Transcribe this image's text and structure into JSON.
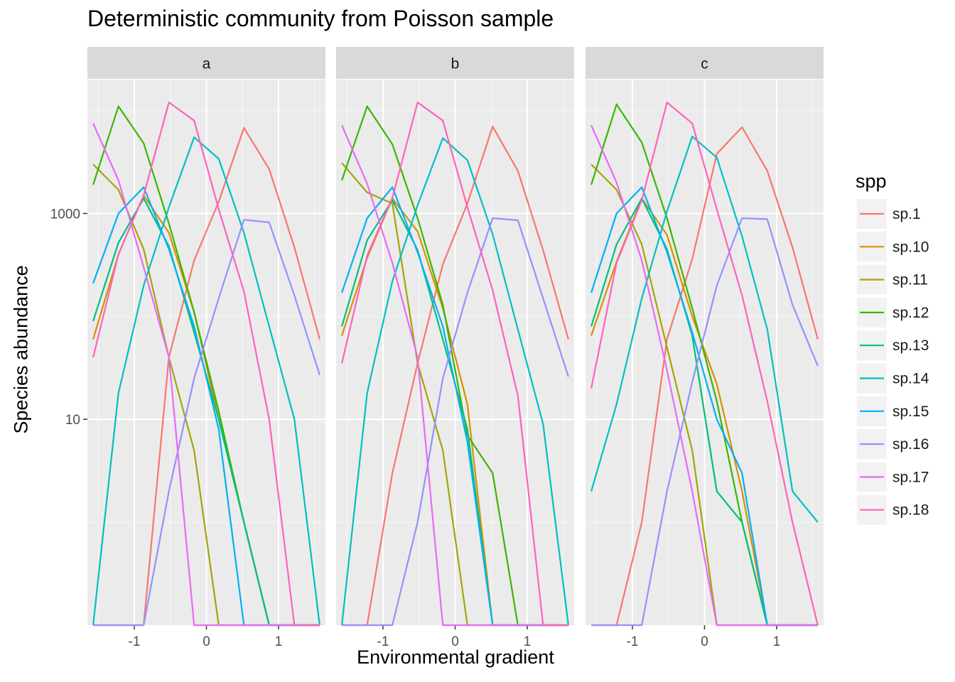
{
  "chart_data": {
    "type": "line",
    "title": "Deterministic community from Poisson sample",
    "xlabel": "Environmental gradient",
    "ylabel": "Species abundance",
    "legend_title": "spp",
    "legend_position": "right",
    "y_scale": "log10",
    "ylim": [
      0.1,
      20000
    ],
    "xlim": [
      -1.65,
      1.65
    ],
    "x_ticks": [
      -1,
      0,
      1
    ],
    "x_tick_labels": [
      "-1",
      "0",
      "1"
    ],
    "y_ticks": [
      10,
      1000
    ],
    "y_tick_labels": [
      "10",
      "1000"
    ],
    "y_minor_ticks": [
      1,
      100,
      10000
    ],
    "grid": true,
    "x": [
      -1.57,
      -1.22,
      -0.87,
      -0.52,
      -0.17,
      0.17,
      0.52,
      0.87,
      1.22,
      1.57
    ],
    "colors": {
      "sp.1": "#F8766D",
      "sp.10": "#D89000",
      "sp.11": "#A3A500",
      "sp.12": "#39B600",
      "sp.13": "#00BF7D",
      "sp.14": "#00BFC4",
      "sp.15": "#00B0F6",
      "sp.16": "#9590FF",
      "sp.17": "#E76BF3",
      "sp.18": "#FF62BC"
    },
    "species": [
      "sp.1",
      "sp.10",
      "sp.11",
      "sp.12",
      "sp.13",
      "sp.14",
      "sp.15",
      "sp.16",
      "sp.17",
      "sp.18"
    ],
    "panels": [
      {
        "label": "a",
        "series": {
          "sp.1": [
            0.1,
            0.1,
            0.1,
            40,
            350,
            1300,
            6800,
            2700,
            470,
            60
          ],
          "sp.10": [
            60,
            400,
            1500,
            650,
            110,
            10,
            1,
            0.1,
            0.1,
            0.1
          ],
          "sp.11": [
            3000,
            1700,
            450,
            40,
            5,
            0.1,
            0.1,
            0.1,
            0.1,
            0.1
          ],
          "sp.12": [
            1900,
            11000,
            4800,
            800,
            110,
            12,
            1,
            0.1,
            0.1,
            0.1
          ],
          "sp.13": [
            90,
            520,
            1400,
            480,
            70,
            10,
            1,
            0.1,
            0.1,
            0.1
          ],
          "sp.14": [
            0.1,
            18,
            200,
            1150,
            5500,
            3400,
            650,
            80,
            10,
            0.1
          ],
          "sp.15": [
            210,
            1000,
            1800,
            450,
            80,
            8,
            0.1,
            0.1,
            0.1,
            0.1
          ],
          "sp.16": [
            0.1,
            0.1,
            0.1,
            2,
            25,
            150,
            870,
            820,
            160,
            27
          ],
          "sp.17": [
            7500,
            2100,
            300,
            40,
            0.1,
            0.1,
            0.1,
            0.1,
            0.1,
            0.1
          ],
          "sp.18": [
            40,
            400,
            1500,
            12000,
            8000,
            1100,
            175,
            10,
            0.1,
            0.1
          ]
        }
      },
      {
        "label": "b",
        "series": {
          "sp.1": [
            0.1,
            0.1,
            3,
            35,
            320,
            1250,
            7000,
            2600,
            440,
            60
          ],
          "sp.10": [
            65,
            370,
            1400,
            670,
            120,
            14,
            0.1,
            0.1,
            0.1,
            0.1
          ],
          "sp.11": [
            3100,
            1600,
            1250,
            35,
            5,
            0.1,
            0.1,
            0.1,
            0.1,
            0.1
          ],
          "sp.12": [
            2100,
            11000,
            4700,
            900,
            130,
            7,
            3,
            0.1,
            0.1,
            0.1
          ],
          "sp.13": [
            80,
            550,
            1350,
            440,
            60,
            8,
            0.1,
            0.1,
            0.1,
            0.1
          ],
          "sp.14": [
            0.1,
            18,
            220,
            1200,
            5400,
            3300,
            630,
            75,
            9,
            0.1
          ],
          "sp.15": [
            170,
            900,
            1800,
            420,
            80,
            6,
            0.1,
            0.1,
            0.1,
            0.1
          ],
          "sp.16": [
            0.1,
            0.1,
            0.1,
            1,
            25,
            170,
            900,
            860,
            150,
            26
          ],
          "sp.17": [
            7200,
            1950,
            330,
            40,
            0.1,
            0.1,
            0.1,
            0.1,
            0.1,
            0.1
          ],
          "sp.18": [
            35,
            390,
            1420,
            12000,
            8000,
            1150,
            180,
            17,
            0.1,
            0.1
          ]
        }
      },
      {
        "label": "c",
        "series": {
          "sp.1": [
            0.1,
            0.1,
            1,
            60,
            360,
            3800,
            6900,
            2600,
            470,
            60
          ],
          "sp.10": [
            65,
            340,
            1400,
            620,
            100,
            22,
            2,
            0.1,
            0.1,
            0.1
          ],
          "sp.11": [
            3000,
            1700,
            500,
            50,
            5,
            0.1,
            0.1,
            0.1,
            0.1,
            0.1
          ],
          "sp.12": [
            1900,
            11500,
            4900,
            900,
            120,
            15,
            1,
            0.1,
            0.1,
            0.1
          ],
          "sp.13": [
            80,
            500,
            1400,
            450,
            65,
            2,
            1,
            0.1,
            0.1,
            0.1
          ],
          "sp.14": [
            2,
            14,
            150,
            1050,
            5600,
            3500,
            600,
            75,
            2,
            1
          ],
          "sp.15": [
            170,
            1000,
            1800,
            420,
            70,
            10,
            3,
            0.1,
            0.1,
            0.1
          ],
          "sp.16": [
            0.1,
            0.1,
            0.1,
            2,
            23,
            200,
            900,
            880,
            130,
            33
          ],
          "sp.17": [
            7200,
            2000,
            350,
            30,
            2,
            0.1,
            0.1,
            0.1,
            0.1,
            0.1
          ],
          "sp.18": [
            20,
            330,
            1350,
            12000,
            7500,
            1100,
            160,
            15,
            1,
            0.1
          ]
        }
      }
    ]
  }
}
